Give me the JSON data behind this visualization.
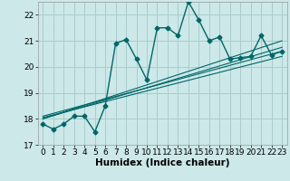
{
  "xlabel": "Humidex (Indice chaleur)",
  "background_color": "#cce8e8",
  "grid_color": "#aacccc",
  "line_color": "#006666",
  "xlim": [
    -0.5,
    23.5
  ],
  "ylim": [
    17,
    22.5
  ],
  "yticks": [
    17,
    18,
    19,
    20,
    21,
    22
  ],
  "xticks": [
    0,
    1,
    2,
    3,
    4,
    5,
    6,
    7,
    8,
    9,
    10,
    11,
    12,
    13,
    14,
    15,
    16,
    17,
    18,
    19,
    20,
    21,
    22,
    23
  ],
  "x": [
    0,
    1,
    2,
    3,
    4,
    5,
    6,
    7,
    8,
    9,
    10,
    11,
    12,
    13,
    14,
    15,
    16,
    17,
    18,
    19,
    20,
    21,
    22,
    23
  ],
  "y_main": [
    17.8,
    17.6,
    17.8,
    18.1,
    18.1,
    17.5,
    18.5,
    20.9,
    21.05,
    20.3,
    19.5,
    21.5,
    21.5,
    21.2,
    22.5,
    21.8,
    21.0,
    21.15,
    20.3,
    20.35,
    20.4,
    21.2,
    20.45,
    20.6
  ],
  "regression_lines": [
    {
      "x_start": 0,
      "y_start": 18.0,
      "x_end": 23,
      "y_end": 20.75
    },
    {
      "x_start": 0,
      "y_start": 18.0,
      "x_end": 23,
      "y_end": 21.0
    },
    {
      "x_start": 0,
      "y_start": 18.1,
      "x_end": 23,
      "y_end": 20.6
    },
    {
      "x_start": 0,
      "y_start": 18.05,
      "x_end": 23,
      "y_end": 20.4
    }
  ],
  "marker_size": 2.5,
  "line_width": 1.0,
  "font_size_ticks": 6.5,
  "font_size_xlabel": 7.5
}
